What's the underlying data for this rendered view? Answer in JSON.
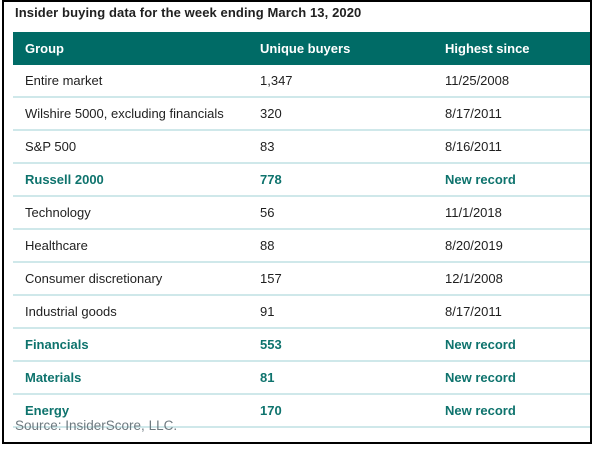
{
  "title": "Insider buying data for the week ending March 13, 2020",
  "source": "Source: InsiderScore, LLC.",
  "colors": {
    "header_bg": "#006b66",
    "header_text": "#ffffff",
    "highlight_text": "#0e736d",
    "body_text": "#1f1f1f",
    "row_divider": "#cfe8ea",
    "source_text": "#6e7a80",
    "frame_border": "#000000"
  },
  "table": {
    "columns": [
      "Group",
      "Unique buyers",
      "Highest since"
    ],
    "rows": [
      {
        "group": "Entire market",
        "unique_buyers": "1,347",
        "highest_since": "11/25/2008",
        "highlight": false
      },
      {
        "group": "Wilshire 5000, excluding financials",
        "unique_buyers": "320",
        "highest_since": "8/17/2011",
        "highlight": false
      },
      {
        "group": "S&P 500",
        "unique_buyers": "83",
        "highest_since": "8/16/2011",
        "highlight": false
      },
      {
        "group": "Russell 2000",
        "unique_buyers": "778",
        "highest_since": "New record",
        "highlight": true
      },
      {
        "group": "Technology",
        "unique_buyers": "56",
        "highest_since": "11/1/2018",
        "highlight": false
      },
      {
        "group": "Healthcare",
        "unique_buyers": "88",
        "highest_since": "8/20/2019",
        "highlight": false
      },
      {
        "group": "Consumer discretionary",
        "unique_buyers": "157",
        "highest_since": "12/1/2008",
        "highlight": false
      },
      {
        "group": "Industrial goods",
        "unique_buyers": "91",
        "highest_since": "8/17/2011",
        "highlight": false
      },
      {
        "group": "Financials",
        "unique_buyers": "553",
        "highest_since": "New record",
        "highlight": true
      },
      {
        "group": "Materials",
        "unique_buyers": "81",
        "highest_since": "New record",
        "highlight": true
      },
      {
        "group": "Energy",
        "unique_buyers": "170",
        "highest_since": "New record",
        "highlight": true
      }
    ]
  },
  "chart_data": {
    "type": "table",
    "title": "Insider buying data for the week ending March 13, 2020",
    "columns": [
      "Group",
      "Unique buyers",
      "Highest since"
    ],
    "rows": [
      [
        "Entire market",
        1347,
        "11/25/2008"
      ],
      [
        "Wilshire 5000, excluding financials",
        320,
        "8/17/2011"
      ],
      [
        "S&P 500",
        83,
        "8/16/2011"
      ],
      [
        "Russell 2000",
        778,
        "New record"
      ],
      [
        "Technology",
        56,
        "11/1/2018"
      ],
      [
        "Healthcare",
        88,
        "8/20/2019"
      ],
      [
        "Consumer discretionary",
        157,
        "12/1/2008"
      ],
      [
        "Industrial goods",
        91,
        "8/17/2011"
      ],
      [
        "Financials",
        553,
        "New record"
      ],
      [
        "Materials",
        81,
        "New record"
      ],
      [
        "Energy",
        170,
        "New record"
      ]
    ],
    "notes": "Rows with 'New record' are emphasized in bold teal; source: InsiderScore, LLC.",
    "legend_position": "none",
    "grid": "horizontal row dividers only"
  }
}
